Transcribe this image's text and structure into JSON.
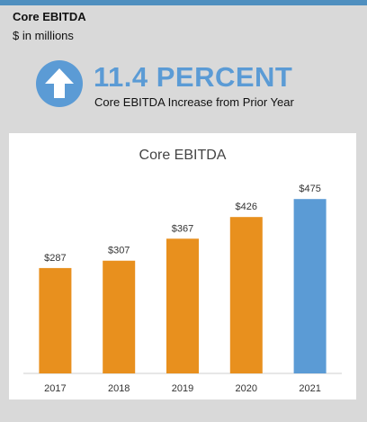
{
  "header": {
    "title": "Core EBITDA",
    "subtitle": "$ in millions"
  },
  "kpi": {
    "value": "11.4 PERCENT",
    "description": "Core EBITDA Increase from Prior Year",
    "icon": "up-arrow-icon",
    "color": "#5b9bd5"
  },
  "colors": {
    "header_bar": "#4f8fbf",
    "background": "#d9d9d9",
    "bar_default": "#e8901e",
    "bar_highlight": "#5b9bd5"
  },
  "chart_data": {
    "type": "bar",
    "title": "Core EBITDA",
    "categories": [
      "2017",
      "2018",
      "2019",
      "2020",
      "2021"
    ],
    "values": [
      287,
      307,
      367,
      426,
      475
    ],
    "data_labels": [
      "$287",
      "$307",
      "$367",
      "$426",
      "$475"
    ],
    "highlight_index": 4,
    "ylim": [
      0,
      500
    ],
    "grid": false,
    "legend": "none",
    "xlabel": "",
    "ylabel": ""
  }
}
